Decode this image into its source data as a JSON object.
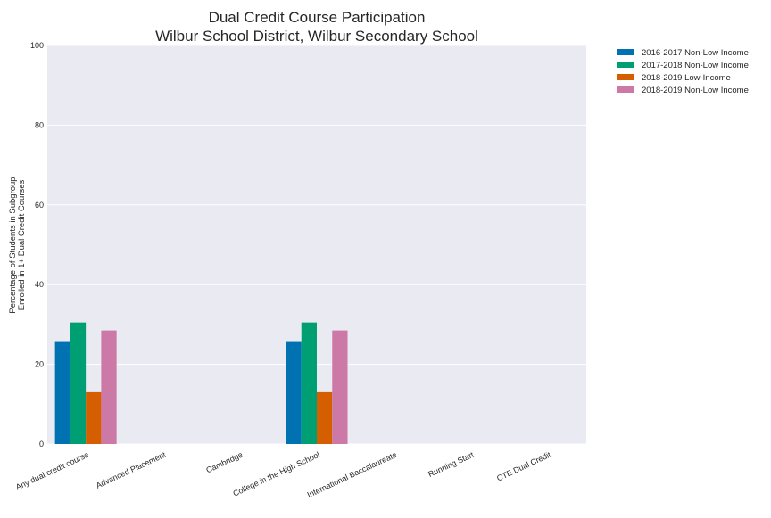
{
  "chart_data": {
    "type": "bar",
    "title": [
      "Dual Credit Course Participation",
      "Wilbur School District, Wilbur Secondary School"
    ],
    "xlabel": "",
    "ylabel": [
      "Percentage of Students in Subgroup",
      "Enrolled in 1+ Dual Credit Courses"
    ],
    "ylim": [
      0,
      100
    ],
    "yticks": [
      0,
      20,
      40,
      60,
      80,
      100
    ],
    "grid": true,
    "legend_position": "outside-top-right",
    "categories": [
      "Any dual credit course",
      "Advanced Placement",
      "Cambridge",
      "College in the High School",
      "International Baccalaureate",
      "Running Start",
      "CTE Dual Credit"
    ],
    "series": [
      {
        "name": "2016-2017 Non-Low Income",
        "color": "#0072b2",
        "values": [
          25.6,
          0,
          0,
          25.6,
          0,
          0,
          0
        ]
      },
      {
        "name": "2017-2018 Non-Low Income",
        "color": "#009e73",
        "values": [
          30.5,
          0,
          0,
          30.5,
          0,
          0,
          0
        ]
      },
      {
        "name": "2018-2019 Low-Income",
        "color": "#d55e00",
        "values": [
          13.0,
          0,
          0,
          13.0,
          0,
          0,
          0
        ]
      },
      {
        "name": "2018-2019 Non-Low Income",
        "color": "#cc79a7",
        "values": [
          28.5,
          0,
          0,
          28.5,
          0,
          0,
          0
        ]
      }
    ]
  }
}
